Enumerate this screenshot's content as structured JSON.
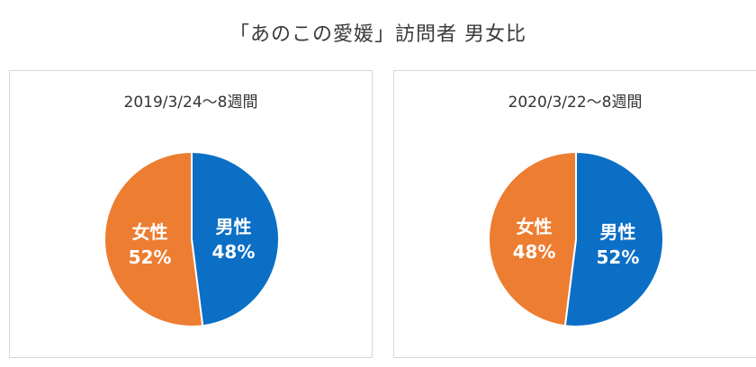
{
  "title": "「あのこの愛媛」訪問者 男女比",
  "chart_data": [
    {
      "type": "pie",
      "title": "2019/3/24〜8週間",
      "slices": [
        {
          "label": "男性",
          "value": 48,
          "display": "48%",
          "color": "#0b6fc6"
        },
        {
          "label": "女性",
          "value": 52,
          "display": "52%",
          "color": "#ed7d31"
        }
      ]
    },
    {
      "type": "pie",
      "title": "2020/3/22〜8週間",
      "slices": [
        {
          "label": "男性",
          "value": 52,
          "display": "52%",
          "color": "#0b6fc6"
        },
        {
          "label": "女性",
          "value": 48,
          "display": "48%",
          "color": "#ed7d31"
        }
      ]
    }
  ]
}
